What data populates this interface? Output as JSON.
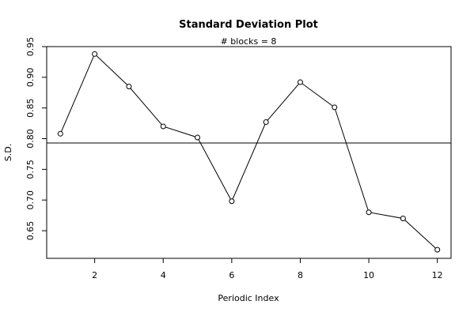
{
  "chart_data": {
    "type": "line",
    "title": "Standard Deviation Plot",
    "subtitle": "# blocks =  8",
    "xlabel": "Periodic Index",
    "ylabel": "S.D.",
    "xlim": [
      0.6,
      12.4
    ],
    "ylim": [
      0.605,
      0.95
    ],
    "xticks": [
      2,
      4,
      6,
      8,
      10,
      12
    ],
    "xtick_labels": [
      "2",
      "4",
      "6",
      "8",
      "10",
      "12"
    ],
    "yticks": [
      0.65,
      0.7,
      0.75,
      0.8,
      0.85,
      0.9,
      0.95
    ],
    "ytick_labels": [
      "0.65",
      "0.70",
      "0.75",
      "0.80",
      "0.85",
      "0.90",
      "0.95"
    ],
    "reference_line_y": 0.793,
    "grid": false,
    "series": [
      {
        "x": [
          1,
          2,
          3,
          4,
          5,
          6,
          7,
          8,
          9,
          10,
          11,
          12
        ],
        "values": [
          0.808,
          0.938,
          0.885,
          0.82,
          0.802,
          0.698,
          0.827,
          0.892,
          0.851,
          0.68,
          0.67,
          0.619
        ]
      }
    ]
  }
}
